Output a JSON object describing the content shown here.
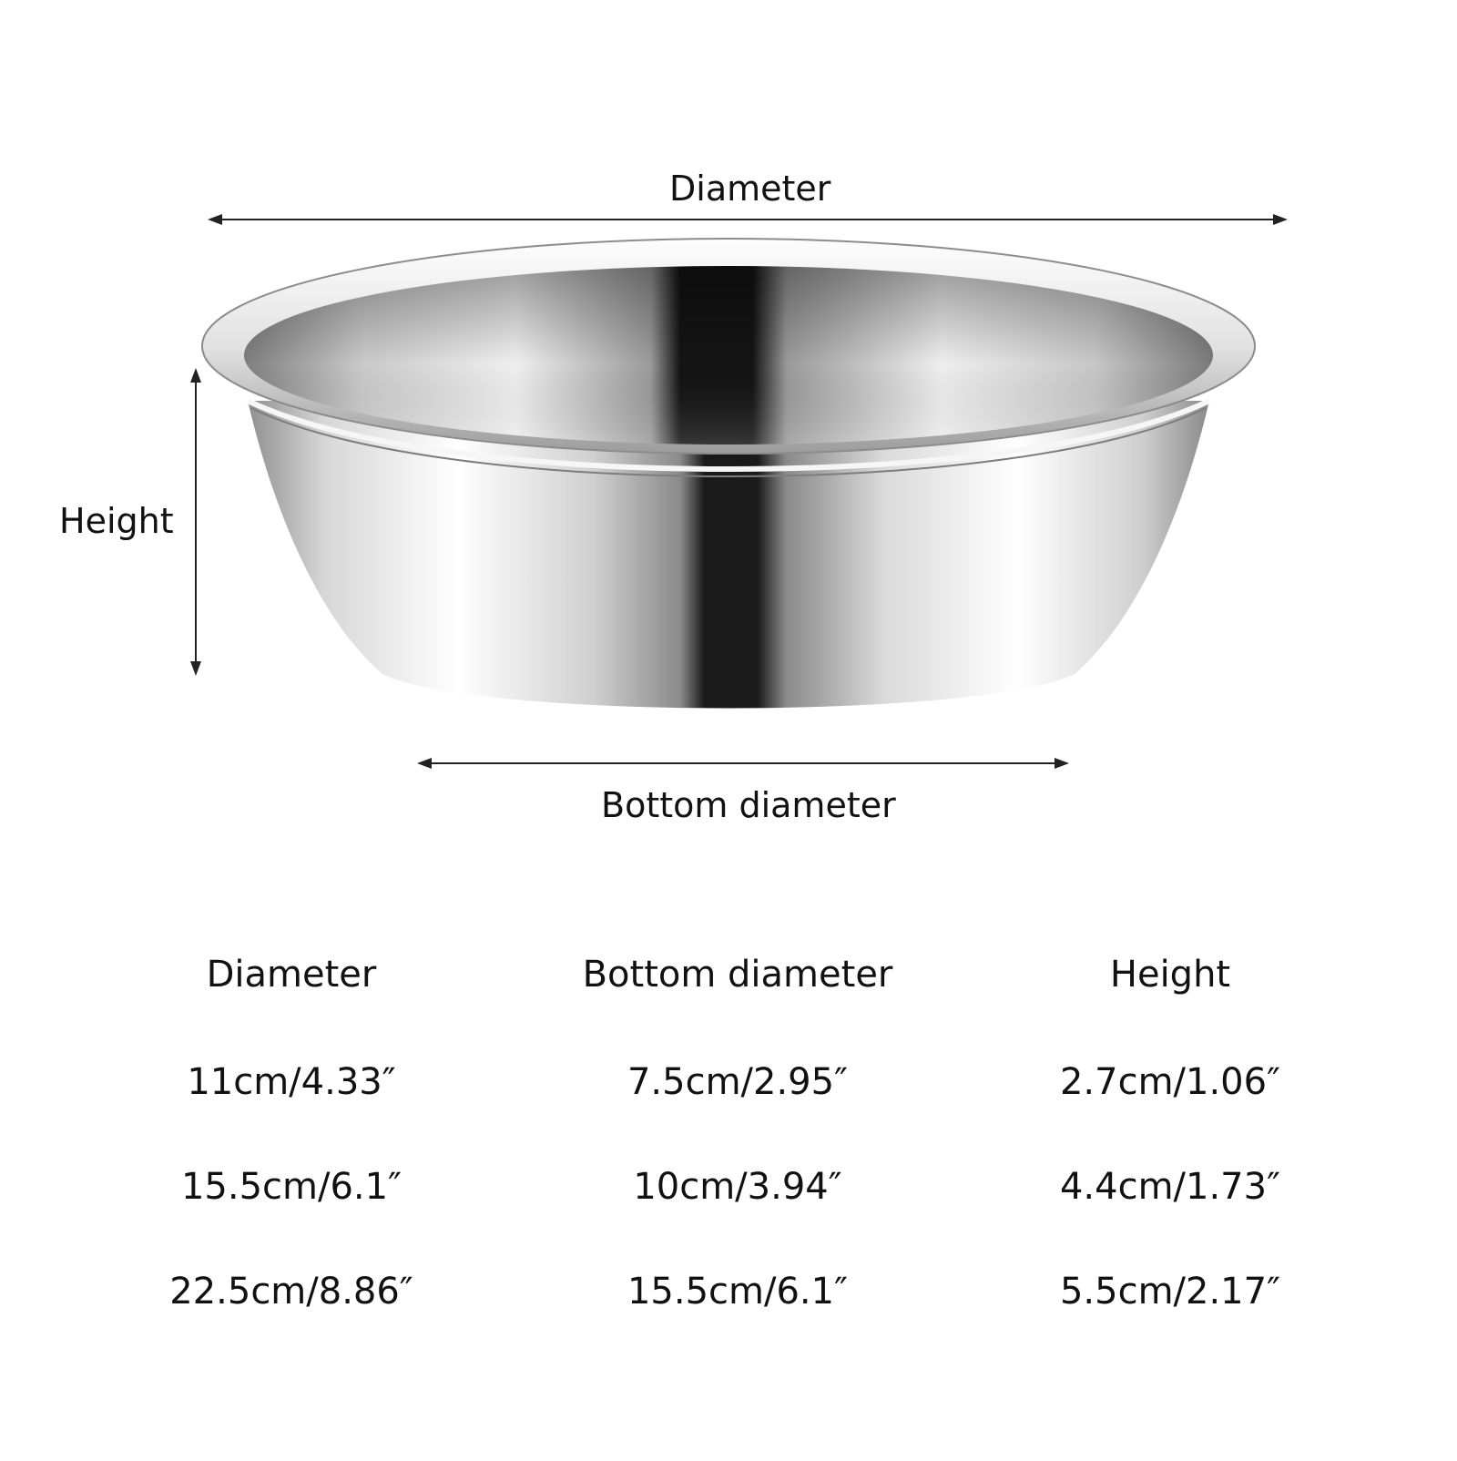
{
  "dimension_labels": {
    "diameter": "Diameter",
    "height": "Height",
    "bottom_diameter": "Bottom diameter"
  },
  "size_table": {
    "headers": [
      "Diameter",
      "Bottom diameter",
      "Height"
    ],
    "rows": [
      [
        "11cm/4.33″",
        "7.5cm/2.95″",
        "2.7cm/1.06″"
      ],
      [
        "15.5cm/6.1″",
        "10cm/3.94″",
        "4.4cm/1.73″"
      ],
      [
        "22.5cm/8.86″",
        "15.5cm/6.1″",
        "5.5cm/2.17″"
      ]
    ]
  },
  "product_image": {
    "subject": "stainless-steel-bowl",
    "colors": {
      "steel_light": "#f4f4f4",
      "steel_mid": "#b9b9b9",
      "steel_dark": "#222222"
    }
  }
}
